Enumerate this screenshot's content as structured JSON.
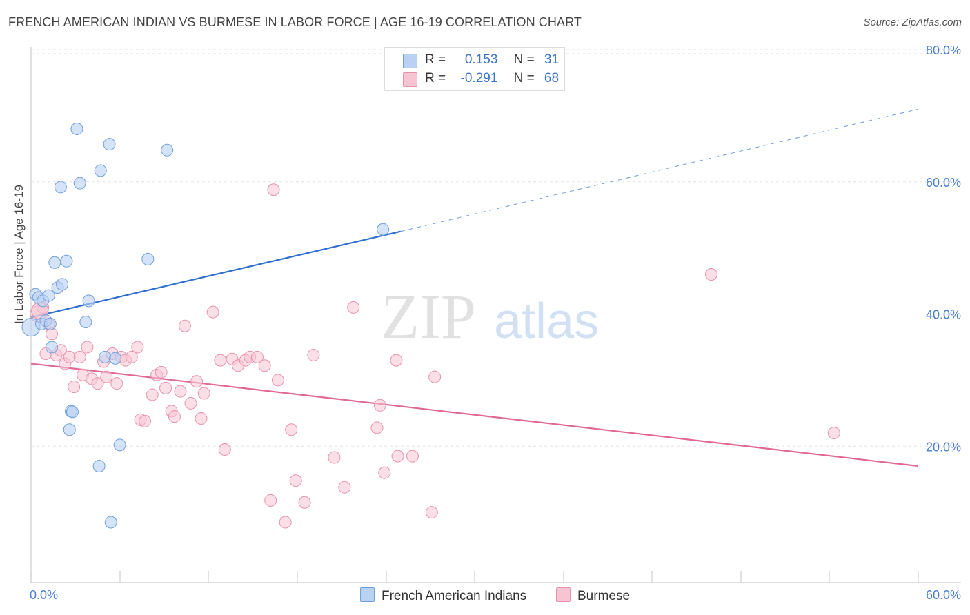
{
  "title": "FRENCH AMERICAN INDIAN VS BURMESE IN LABOR FORCE | AGE 16-19 CORRELATION CHART",
  "source": "Source: ZipAtlas.com",
  "watermark": {
    "part1": "ZIP",
    "part2": "atlas"
  },
  "legend": {
    "rows": [
      {
        "r_label": "R =",
        "r_value": "0.153",
        "n_label": "N =",
        "n_value": "31"
      },
      {
        "r_label": "R =",
        "r_value": "-0.291",
        "n_label": "N =",
        "n_value": "68"
      }
    ]
  },
  "colors": {
    "blue_fill": "#b9d1f3",
    "blue_stroke": "#6f9fd8",
    "blue_line": "#2f6fcf",
    "pink_fill": "#f7c4d4",
    "pink_stroke": "#e891ad",
    "pink_line": "#e06892",
    "grid": "#e3e3e3",
    "tick_text": "#4a7fcf"
  },
  "chart_data": {
    "type": "scatter",
    "title": "FRENCH AMERICAN INDIAN VS BURMESE IN LABOR FORCE | AGE 16-19 CORRELATION CHART",
    "xlabel": "",
    "ylabel": "In Labor Force | Age 16-19",
    "xlim": [
      0,
      60
    ],
    "ylim": [
      0,
      80
    ],
    "x_tick_labels": [
      "0.0%",
      "60.0%"
    ],
    "y_ticks": [
      20,
      40,
      60,
      80
    ],
    "y_tick_labels": [
      "20.0%",
      "40.0%",
      "60.0%",
      "80.0%"
    ],
    "grid": true,
    "legend_placement": "top-center",
    "series": [
      {
        "name": "French American Indians",
        "r": 0.153,
        "n": 31,
        "trend": {
          "x": [
            0,
            25
          ],
          "y": [
            39.5,
            52.5
          ],
          "dashed_extension_to_x": 60,
          "dashed_extension_y": 71
        },
        "points": [
          [
            0.0,
            38.0
          ],
          [
            0.3,
            43.0
          ],
          [
            0.5,
            42.5
          ],
          [
            0.7,
            38.5
          ],
          [
            0.8,
            42.0
          ],
          [
            1.0,
            39.0
          ],
          [
            1.2,
            42.8
          ],
          [
            1.3,
            38.5
          ],
          [
            1.4,
            35.0
          ],
          [
            1.6,
            47.8
          ],
          [
            1.8,
            44.0
          ],
          [
            2.1,
            44.5
          ],
          [
            2.0,
            59.2
          ],
          [
            2.4,
            48.0
          ],
          [
            2.6,
            22.5
          ],
          [
            2.7,
            25.3
          ],
          [
            2.8,
            25.2
          ],
          [
            3.1,
            68.0
          ],
          [
            3.3,
            59.8
          ],
          [
            3.7,
            38.8
          ],
          [
            3.9,
            42.0
          ],
          [
            4.6,
            17.0
          ],
          [
            4.7,
            61.7
          ],
          [
            5.0,
            33.5
          ],
          [
            5.3,
            65.7
          ],
          [
            5.4,
            8.5
          ],
          [
            5.7,
            33.3
          ],
          [
            6.0,
            20.2
          ],
          [
            7.9,
            48.3
          ],
          [
            9.2,
            64.8
          ],
          [
            23.8,
            52.8
          ]
        ]
      },
      {
        "name": "Burmese",
        "r": -0.291,
        "n": 68,
        "trend": {
          "x": [
            0,
            60
          ],
          "y": [
            32.5,
            17.0
          ]
        },
        "points": [
          [
            0.5,
            40.0
          ],
          [
            0.8,
            41.0
          ],
          [
            1.0,
            34.0
          ],
          [
            1.2,
            38.5
          ],
          [
            1.4,
            37.0
          ],
          [
            1.7,
            33.8
          ],
          [
            2.0,
            34.5
          ],
          [
            2.3,
            32.5
          ],
          [
            2.6,
            33.5
          ],
          [
            2.9,
            29.0
          ],
          [
            3.3,
            33.5
          ],
          [
            3.5,
            30.8
          ],
          [
            3.8,
            35.0
          ],
          [
            4.1,
            30.2
          ],
          [
            4.5,
            29.5
          ],
          [
            4.9,
            32.8
          ],
          [
            5.1,
            30.5
          ],
          [
            5.5,
            34.0
          ],
          [
            5.8,
            29.5
          ],
          [
            6.1,
            33.5
          ],
          [
            6.4,
            33.0
          ],
          [
            6.8,
            33.5
          ],
          [
            7.2,
            35.0
          ],
          [
            7.4,
            24.0
          ],
          [
            7.7,
            23.8
          ],
          [
            8.2,
            27.8
          ],
          [
            8.5,
            30.8
          ],
          [
            8.8,
            31.2
          ],
          [
            9.1,
            28.8
          ],
          [
            9.5,
            25.3
          ],
          [
            9.7,
            24.5
          ],
          [
            10.1,
            28.3
          ],
          [
            10.4,
            38.2
          ],
          [
            10.8,
            26.5
          ],
          [
            11.2,
            29.8
          ],
          [
            11.5,
            24.2
          ],
          [
            11.7,
            28.0
          ],
          [
            12.3,
            40.3
          ],
          [
            12.8,
            33.0
          ],
          [
            13.1,
            19.5
          ],
          [
            13.6,
            33.2
          ],
          [
            14.0,
            32.2
          ],
          [
            14.5,
            33.0
          ],
          [
            14.8,
            33.5
          ],
          [
            15.3,
            33.5
          ],
          [
            15.8,
            32.2
          ],
          [
            16.2,
            11.8
          ],
          [
            16.4,
            58.8
          ],
          [
            16.7,
            30.0
          ],
          [
            17.2,
            8.5
          ],
          [
            17.6,
            22.5
          ],
          [
            17.9,
            14.8
          ],
          [
            18.5,
            11.5
          ],
          [
            19.1,
            33.8
          ],
          [
            20.5,
            18.3
          ],
          [
            21.2,
            13.8
          ],
          [
            21.8,
            41.0
          ],
          [
            23.4,
            22.8
          ],
          [
            23.6,
            26.2
          ],
          [
            23.9,
            16.0
          ],
          [
            24.7,
            33.0
          ],
          [
            24.8,
            18.5
          ],
          [
            25.8,
            18.5
          ],
          [
            27.1,
            10.0
          ],
          [
            27.3,
            30.5
          ],
          [
            46.0,
            46.0
          ],
          [
            54.3,
            22.0
          ],
          [
            0.6,
            40.5
          ]
        ]
      }
    ]
  }
}
